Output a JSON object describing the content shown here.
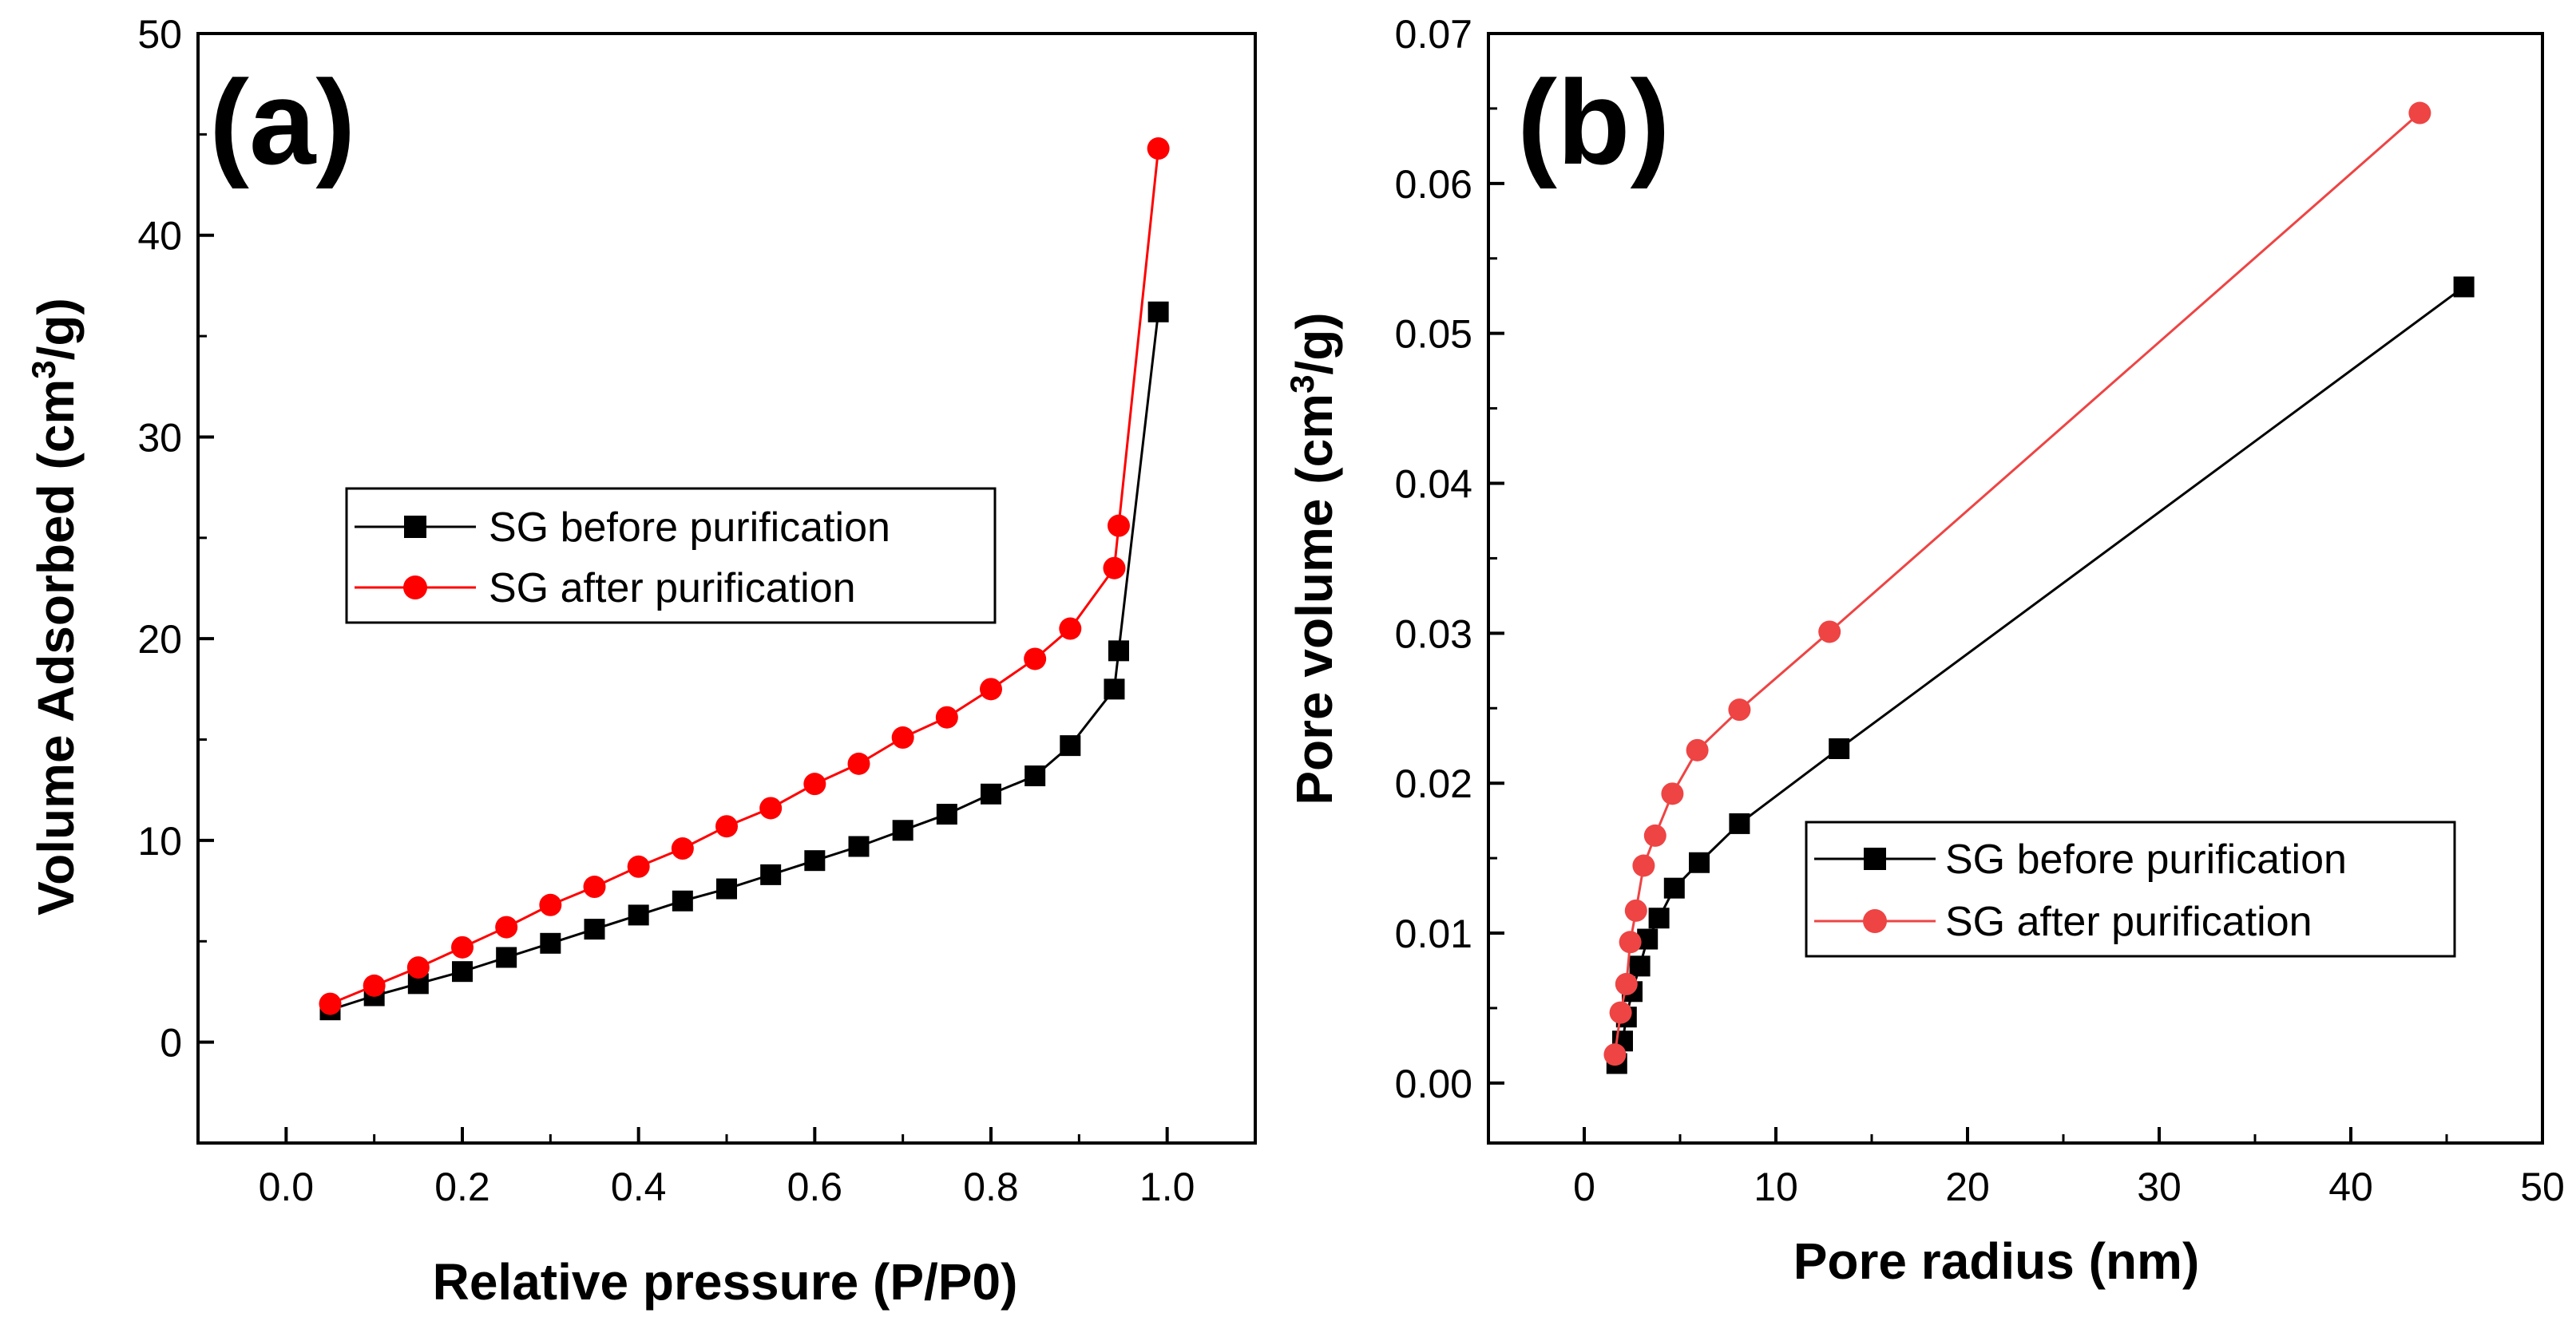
{
  "chart_data": [
    {
      "panel": "(a)",
      "type": "line",
      "xlabel": "Relative pressure (P/P0)",
      "ylabel_main": "Volume Adsorbed (cm",
      "ylabel_sup": "3",
      "ylabel_tail": "/g)",
      "xlim": [
        -0.1,
        1.1
      ],
      "ylim": [
        -5,
        50
      ],
      "xticks": [
        0.0,
        0.2,
        0.4,
        0.6,
        0.8,
        1.0
      ],
      "xtick_labels": [
        "0.0",
        "0.2",
        "0.4",
        "0.6",
        "0.8",
        "1.0"
      ],
      "yticks": [
        0,
        10,
        20,
        30,
        40,
        50
      ],
      "ytick_labels": [
        "0",
        "10",
        "20",
        "30",
        "40",
        "50"
      ],
      "legend_position": "center-left",
      "series": [
        {
          "name": "SG before purification",
          "color": "#000000",
          "marker": "square",
          "x": [
            0.05,
            0.1,
            0.15,
            0.2,
            0.25,
            0.3,
            0.35,
            0.4,
            0.45,
            0.5,
            0.55,
            0.6,
            0.65,
            0.7,
            0.75,
            0.8,
            0.85,
            0.89,
            0.94,
            0.945,
            0.99
          ],
          "y": [
            1.6,
            2.3,
            2.9,
            3.5,
            4.2,
            4.9,
            5.6,
            6.3,
            7.0,
            7.6,
            8.3,
            9.0,
            9.7,
            10.5,
            11.3,
            12.3,
            13.2,
            14.7,
            17.5,
            19.4,
            36.2
          ]
        },
        {
          "name": "SG after purification",
          "color": "#ff0000",
          "marker": "circle",
          "x": [
            0.05,
            0.1,
            0.15,
            0.2,
            0.25,
            0.3,
            0.35,
            0.4,
            0.45,
            0.5,
            0.55,
            0.6,
            0.65,
            0.7,
            0.75,
            0.8,
            0.85,
            0.89,
            0.94,
            0.945,
            0.99
          ],
          "y": [
            1.9,
            2.8,
            3.7,
            4.7,
            5.7,
            6.8,
            7.7,
            8.7,
            9.6,
            10.7,
            11.6,
            12.8,
            13.8,
            15.1,
            16.1,
            17.5,
            19.0,
            20.5,
            23.5,
            25.6,
            44.3
          ]
        }
      ]
    },
    {
      "panel": "(b)",
      "type": "line",
      "xlabel": "Pore radius (nm)",
      "ylabel_main": "Pore volume (cm",
      "ylabel_sup": "3",
      "ylabel_tail": "/g)",
      "xlim": [
        -5,
        50
      ],
      "ylim": [
        -0.004,
        0.07
      ],
      "xticks": [
        0,
        10,
        20,
        30,
        40,
        50
      ],
      "xtick_labels": [
        "0",
        "10",
        "20",
        "30",
        "40",
        "50"
      ],
      "yticks": [
        0.0,
        0.01,
        0.02,
        0.03,
        0.04,
        0.05,
        0.06,
        0.07
      ],
      "ytick_labels": [
        "0.00",
        "0.01",
        "0.02",
        "0.03",
        "0.04",
        "0.05",
        "0.06",
        "0.07"
      ],
      "legend_position": "lower-right",
      "series": [
        {
          "name": "SG before purification",
          "color": "#000000",
          "marker": "square",
          "x": [
            1.7,
            2.0,
            2.2,
            2.5,
            2.9,
            3.3,
            3.9,
            4.7,
            6.0,
            8.1,
            13.3,
            45.9
          ],
          "y": [
            0.0013,
            0.0028,
            0.0044,
            0.0061,
            0.0078,
            0.0096,
            0.011,
            0.013,
            0.0147,
            0.0173,
            0.0223,
            0.0531
          ]
        },
        {
          "name": "SG after purification",
          "color": "#ee4444",
          "marker": "circle",
          "x": [
            1.6,
            1.9,
            2.2,
            2.4,
            2.7,
            3.1,
            3.7,
            4.6,
            5.9,
            8.1,
            12.8,
            43.6
          ],
          "y": [
            0.0019,
            0.0047,
            0.0066,
            0.0094,
            0.0115,
            0.0145,
            0.0165,
            0.0193,
            0.0222,
            0.0249,
            0.0301,
            0.0647
          ]
        }
      ]
    }
  ]
}
